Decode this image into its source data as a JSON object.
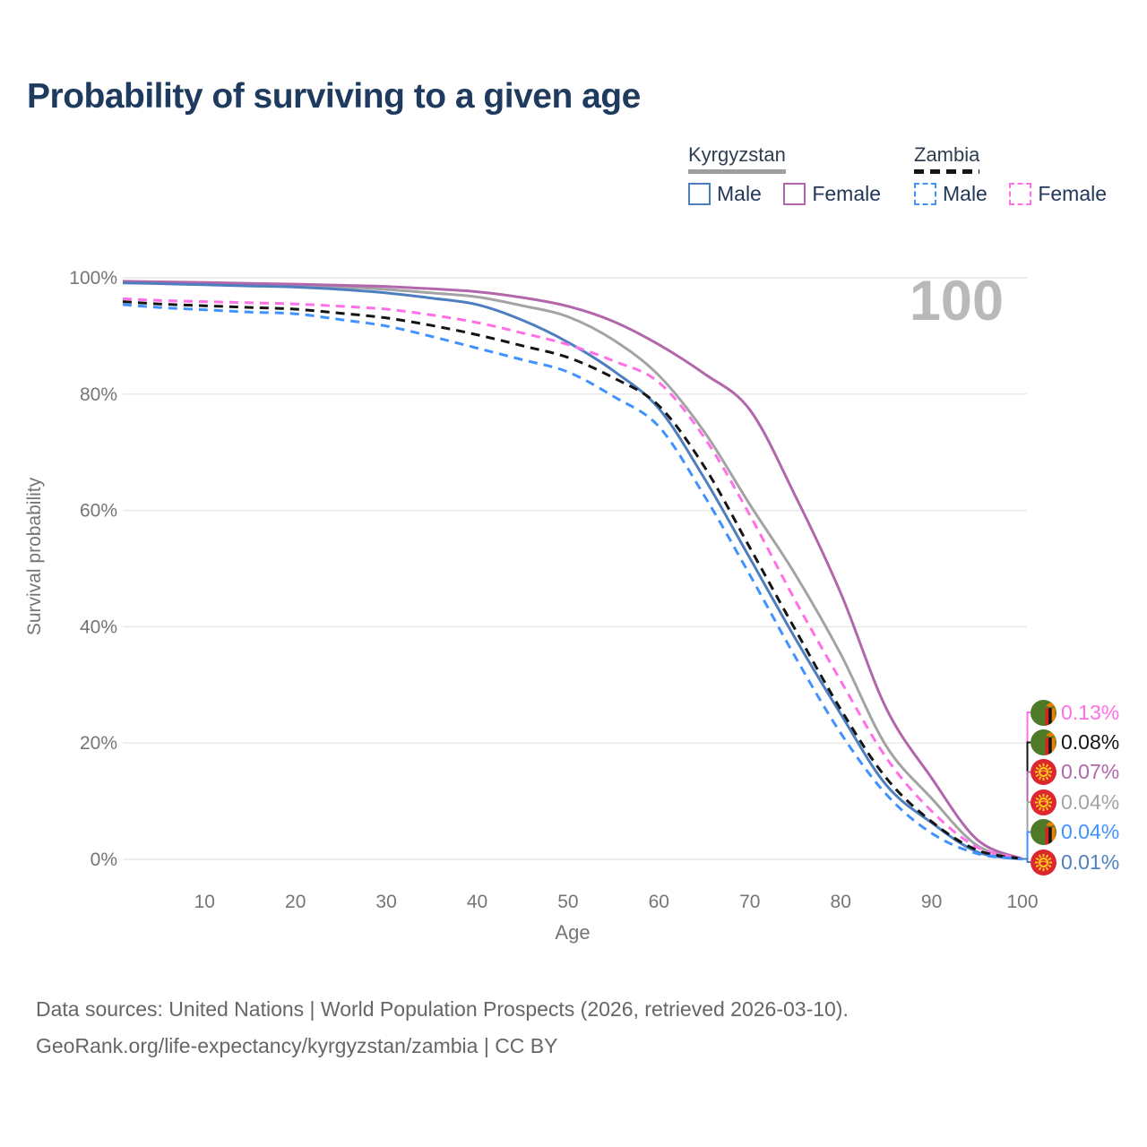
{
  "title": "Probability of surviving to a given age",
  "age_indicator": "100",
  "legend": {
    "groups": [
      {
        "name": "Kyrgyzstan",
        "line_style": "solid",
        "line_color": "#9e9e9e",
        "items": [
          {
            "label": "Male",
            "color": "#4d7ebf",
            "dashed": false
          },
          {
            "label": "Female",
            "color": "#b266ab",
            "dashed": false
          }
        ]
      },
      {
        "name": "Zambia",
        "line_style": "dashed",
        "line_color": "#151515",
        "items": [
          {
            "label": "Male",
            "color": "#3f92ff",
            "dashed": true
          },
          {
            "label": "Female",
            "color": "#ff6fe8",
            "dashed": true
          }
        ]
      }
    ]
  },
  "chart_data": {
    "type": "line",
    "title": "Probability of surviving to a given age",
    "xlabel": "Age",
    "ylabel": "Survival probability",
    "xlim": [
      1,
      100
    ],
    "ylim": [
      0,
      100
    ],
    "grid": "horizontal-only",
    "x_ticks": [
      {
        "v": 10,
        "label": "10"
      },
      {
        "v": 20,
        "label": "20"
      },
      {
        "v": 30,
        "label": "30"
      },
      {
        "v": 40,
        "label": "40"
      },
      {
        "v": 50,
        "label": "50"
      },
      {
        "v": 60,
        "label": "60"
      },
      {
        "v": 70,
        "label": "70"
      },
      {
        "v": 80,
        "label": "80"
      },
      {
        "v": 90,
        "label": "90"
      },
      {
        "v": 100,
        "label": "100"
      }
    ],
    "y_ticks": [
      {
        "v": 0,
        "label": "0%"
      },
      {
        "v": 20,
        "label": "20%"
      },
      {
        "v": 40,
        "label": "40%"
      },
      {
        "v": 60,
        "label": "60%"
      },
      {
        "v": 80,
        "label": "80%"
      },
      {
        "v": 100,
        "label": "100%"
      }
    ],
    "ages": [
      1,
      5,
      10,
      15,
      20,
      25,
      30,
      35,
      40,
      45,
      50,
      55,
      60,
      65,
      70,
      75,
      80,
      85,
      90,
      95,
      100
    ],
    "series": [
      {
        "name": "Kyrgyzstan Total",
        "country": "Kyrgyzstan",
        "sex": "Total",
        "color": "#a3a3a3",
        "dashed": false,
        "values": [
          99.3,
          99.2,
          99.1,
          98.95,
          98.8,
          98.45,
          98.0,
          97.4,
          96.7,
          95.2,
          93.3,
          89.3,
          83.2,
          73.5,
          61.0,
          49.0,
          35.3,
          19.5,
          10.5,
          2.4,
          0.04
        ]
      },
      {
        "name": "Kyrgyzstan Female",
        "country": "Kyrgyzstan",
        "sex": "Female",
        "color": "#b266ab",
        "dashed": false,
        "values": [
          99.4,
          99.3,
          99.2,
          99.05,
          98.9,
          98.7,
          98.5,
          98.1,
          97.6,
          96.6,
          95.1,
          92.5,
          88.5,
          83.5,
          77.3,
          62.5,
          45.8,
          26.0,
          14.0,
          3.4,
          0.07
        ]
      },
      {
        "name": "Kyrgyzstan Male",
        "country": "Kyrgyzstan",
        "sex": "Male",
        "color": "#4d7ebf",
        "dashed": false,
        "values": [
          99.1,
          99.0,
          98.8,
          98.6,
          98.4,
          98.0,
          97.4,
          96.5,
          95.4,
          92.7,
          88.9,
          84.0,
          77.5,
          65.5,
          51.8,
          38.0,
          25.0,
          12.8,
          6.3,
          1.3,
          0.01
        ]
      },
      {
        "name": "Zambia Female",
        "country": "Zambia",
        "sex": "Female",
        "color": "#ff6fe8",
        "dashed": true,
        "values": [
          96.4,
          96.1,
          95.9,
          95.7,
          95.5,
          95.1,
          94.6,
          93.6,
          92.3,
          90.5,
          88.5,
          85.7,
          82.0,
          72.5,
          59.2,
          44.5,
          30.7,
          17.5,
          8.3,
          2.1,
          0.13
        ]
      },
      {
        "name": "Zambia Total",
        "country": "Zambia",
        "sex": "Total",
        "color": "#141414",
        "dashed": true,
        "values": [
          95.9,
          95.5,
          95.2,
          94.9,
          94.6,
          93.9,
          93.1,
          91.8,
          90.2,
          88.3,
          86.3,
          82.8,
          78.0,
          67.5,
          53.6,
          39.5,
          25.8,
          14.0,
          6.5,
          1.6,
          0.08
        ]
      },
      {
        "name": "Zambia Male",
        "country": "Zambia",
        "sex": "Male",
        "color": "#3f92ff",
        "dashed": true,
        "values": [
          95.4,
          94.9,
          94.5,
          94.1,
          93.8,
          92.8,
          91.7,
          89.9,
          87.9,
          85.9,
          83.8,
          79.6,
          74.4,
          62.5,
          48.9,
          34.8,
          21.7,
          11.2,
          4.5,
          1.0,
          0.04
        ]
      }
    ],
    "end_labels": [
      {
        "value": "0.13%",
        "series": "Zambia Female",
        "flag": "zambia",
        "color": "#ff6fe8"
      },
      {
        "value": "0.08%",
        "series": "Zambia Total",
        "flag": "zambia",
        "color": "#141414"
      },
      {
        "value": "0.07%",
        "series": "Kyrgyzstan Female",
        "flag": "kyrgyzstan",
        "color": "#b266ab"
      },
      {
        "value": "0.04%",
        "series": "Kyrgyzstan Total",
        "flag": "kyrgyzstan",
        "color": "#a3a3a3"
      },
      {
        "value": "0.04%",
        "series": "Zambia Male",
        "flag": "zambia",
        "color": "#3f92ff"
      },
      {
        "value": "0.01%",
        "series": "Kyrgyzstan Male",
        "flag": "kyrgyzstan",
        "color": "#4d7ebf"
      }
    ]
  },
  "footer": {
    "line1": "Data sources: United Nations | World Population Prospects (2026, retrieved 2026-03-10).",
    "line2": "GeoRank.org/life-expectancy/kyrgyzstan/zambia | CC BY"
  }
}
